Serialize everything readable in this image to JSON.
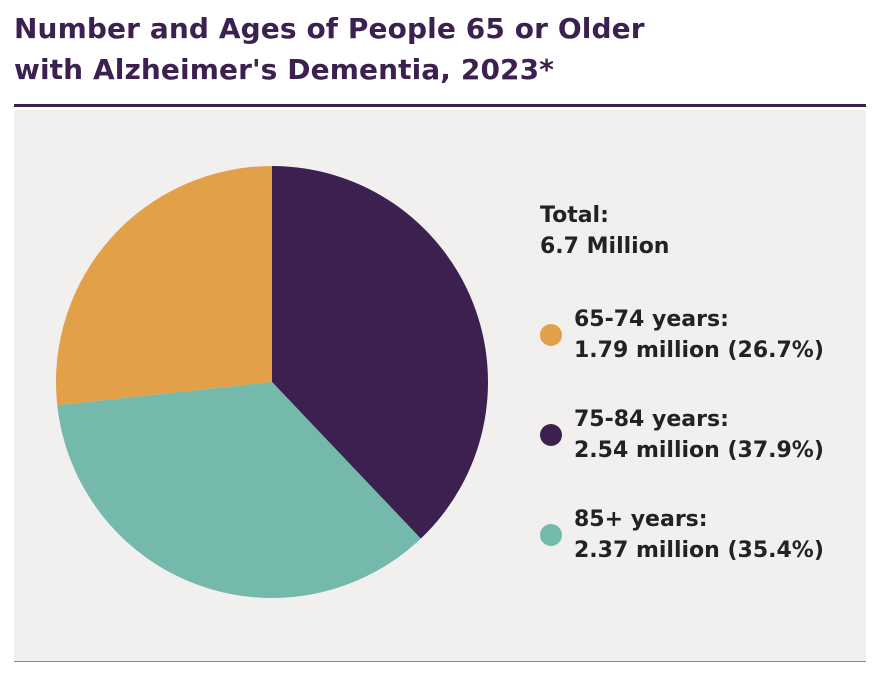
{
  "title": {
    "line1": "Number and Ages of People 65 or Older",
    "line2": "with Alzheimer's Dementia, 2023*"
  },
  "legend": {
    "total_label": "Total:",
    "total_value": "6.7 Million"
  },
  "chart_data": {
    "type": "pie",
    "title": "Number and Ages of People 65 or Older with Alzheimer's Dementia, 2023*",
    "total": "6.7 Million",
    "units": "million",
    "slices": [
      {
        "label": "65-74 years:",
        "value": 1.79,
        "percent": 26.7,
        "value_text": "1.79 million (26.7%)",
        "color": "#e2a049"
      },
      {
        "label": "75-84 years:",
        "value": 2.54,
        "percent": 37.9,
        "value_text": "2.54 million (37.9%)",
        "color": "#3b2050"
      },
      {
        "label": "85+ years:",
        "value": 2.37,
        "percent": 35.4,
        "value_text": "2.37 million (35.4%)",
        "color": "#74b9ab"
      }
    ],
    "legend_position": "right"
  },
  "colors": {
    "title": "#3b2050",
    "panel_background": "#f1f0ef"
  }
}
